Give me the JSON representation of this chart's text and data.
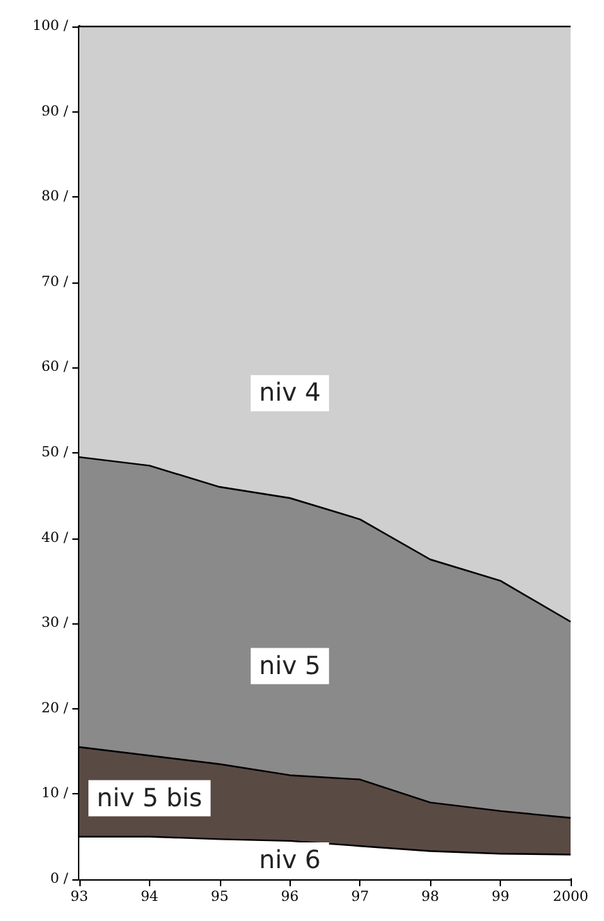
{
  "chart_data": {
    "type": "area",
    "stacked": true,
    "categories": [
      "93",
      "94",
      "95",
      "96",
      "97",
      "98",
      "99",
      "2000"
    ],
    "series": [
      {
        "name": "niv 6",
        "color": "#ffffff",
        "values": [
          5,
          5,
          4.7,
          4.5,
          3.9,
          3.3,
          3,
          2.9
        ]
      },
      {
        "name": "niv 5 bis",
        "color": "#5a4a44",
        "values": [
          10.5,
          9.5,
          8.8,
          7.7,
          7.8,
          5.7,
          5,
          4.3
        ]
      },
      {
        "name": "niv 5",
        "color": "#8a8a8a",
        "values": [
          34,
          34,
          32.5,
          32.5,
          30.5,
          28.5,
          27,
          23
        ]
      },
      {
        "name": "niv 4",
        "color": "#cfcfcf",
        "values": [
          50.5,
          51.5,
          54,
          55.3,
          57.8,
          62.5,
          65,
          69.8
        ]
      }
    ],
    "ylim": [
      0,
      100
    ],
    "yticks": [
      {
        "value": 0,
        "label": "0 /"
      },
      {
        "value": 10,
        "label": "10 /"
      },
      {
        "value": 20,
        "label": "20 /"
      },
      {
        "value": 30,
        "label": "30 /"
      },
      {
        "value": 40,
        "label": "40 /"
      },
      {
        "value": 50,
        "label": "50 /"
      },
      {
        "value": 60,
        "label": "60 /"
      },
      {
        "value": 70,
        "label": "70 /"
      },
      {
        "value": 80,
        "label": "80 /"
      },
      {
        "value": 90,
        "label": "90 /"
      },
      {
        "value": 100,
        "label": "100 /"
      }
    ],
    "grid": false,
    "legend": false
  }
}
